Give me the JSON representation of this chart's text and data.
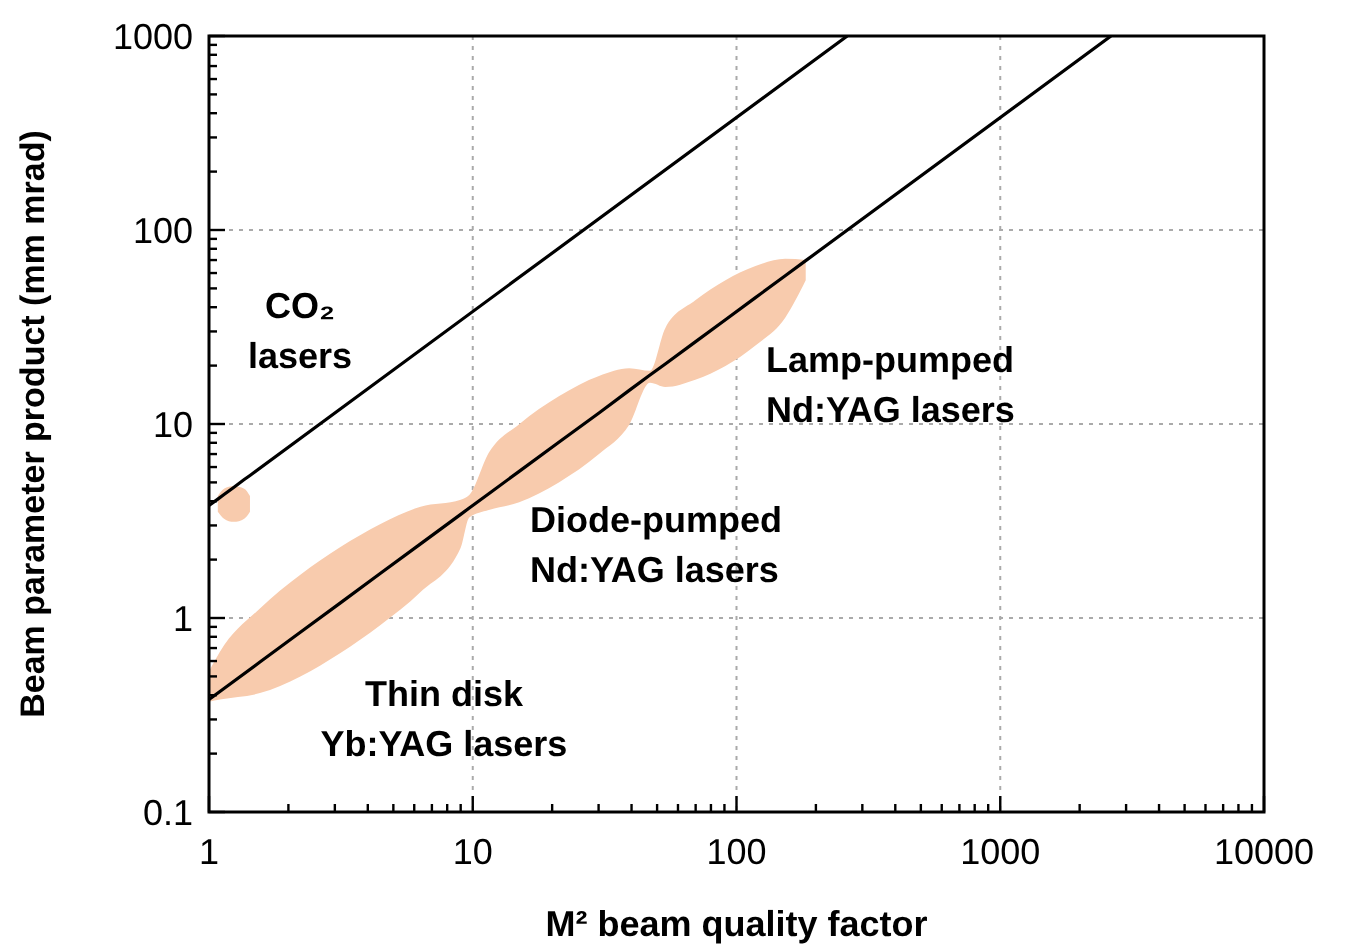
{
  "chart_data": {
    "type": "line",
    "xlabel": "M² beam quality factor",
    "ylabel": "Beam parameter product (mm mrad)",
    "log": "xy",
    "grid": true,
    "line_style": "solid",
    "marker": "none",
    "xlim": [
      1,
      10000
    ],
    "ylim": [
      0.1,
      1000
    ],
    "xticks": [
      1,
      {
        "value": 2,
        "label": null
      },
      {
        "value": 3,
        "label": null
      },
      {
        "value": 4,
        "label": null
      },
      {
        "value": 5,
        "label": null
      },
      {
        "value": 6,
        "label": null
      },
      {
        "value": 7,
        "label": null
      },
      {
        "value": 8,
        "label": null
      },
      {
        "value": 9,
        "label": null
      },
      10,
      {
        "value": 20,
        "label": null
      },
      {
        "value": 30,
        "label": null
      },
      {
        "value": 40,
        "label": null
      },
      {
        "value": 50,
        "label": null
      },
      {
        "value": 60,
        "label": null
      },
      {
        "value": 70,
        "label": null
      },
      {
        "value": 80,
        "label": null
      },
      {
        "value": 90,
        "label": null
      },
      100,
      {
        "value": 200,
        "label": null
      },
      {
        "value": 300,
        "label": null
      },
      {
        "value": 400,
        "label": null
      },
      {
        "value": 500,
        "label": null
      },
      {
        "value": 600,
        "label": null
      },
      {
        "value": 700,
        "label": null
      },
      {
        "value": 800,
        "label": null
      },
      {
        "value": 900,
        "label": null
      },
      1000,
      {
        "value": 2000,
        "label": null
      },
      {
        "value": 3000,
        "label": null
      },
      {
        "value": 4000,
        "label": null
      },
      {
        "value": 5000,
        "label": null
      },
      {
        "value": 6000,
        "label": null
      },
      {
        "value": 7000,
        "label": null
      },
      {
        "value": 8000,
        "label": null
      },
      {
        "value": 9000,
        "label": null
      },
      10000
    ],
    "yticks": [
      {
        "value": 0.1,
        "label": "0.1"
      },
      {
        "value": 0.2,
        "label": null
      },
      {
        "value": 0.3,
        "label": null
      },
      {
        "value": 0.4,
        "label": null
      },
      {
        "value": 0.5,
        "label": null
      },
      {
        "value": 0.6,
        "label": null
      },
      {
        "value": 0.7,
        "label": null
      },
      {
        "value": 0.8,
        "label": null
      },
      {
        "value": 0.9,
        "label": null
      },
      1,
      {
        "value": 2,
        "label": null
      },
      {
        "value": 3,
        "label": null
      },
      {
        "value": 4,
        "label": null
      },
      {
        "value": 5,
        "label": null
      },
      {
        "value": 6,
        "label": null
      },
      {
        "value": 7,
        "label": null
      },
      {
        "value": 8,
        "label": null
      },
      {
        "value": 9,
        "label": null
      },
      10,
      {
        "value": 20,
        "label": null
      },
      {
        "value": 30,
        "label": null
      },
      {
        "value": 40,
        "label": null
      },
      {
        "value": 50,
        "label": null
      },
      {
        "value": 60,
        "label": null
      },
      {
        "value": 70,
        "label": null
      },
      {
        "value": 80,
        "label": null
      },
      {
        "value": 90,
        "label": null
      },
      100,
      {
        "value": 200,
        "label": null
      },
      {
        "value": 300,
        "label": null
      },
      {
        "value": 400,
        "label": null
      },
      {
        "value": 500,
        "label": null
      },
      {
        "value": 600,
        "label": null
      },
      {
        "value": 700,
        "label": null
      },
      {
        "value": 800,
        "label": null
      },
      {
        "value": 900,
        "label": null
      },
      1000
    ],
    "series": [
      {
        "color": "#000000",
        "x": [
          1,
          1.08,
          1.14,
          1.24,
          1.36,
          1.43,
          263
        ],
        "values": [
          3.8,
          4.1,
          4.33,
          4.71,
          5.17,
          5.43,
          1000
        ],
        "lower": [
          null,
          3.53,
          3.25,
          3.13,
          3.25,
          3.53,
          null
        ],
        "upper": [
          null,
          4.25,
          4.64,
          4.79,
          4.64,
          4.25,
          null
        ]
      },
      {
        "color": "#000000",
        "x": [
          1,
          1.1,
          1.56,
          2.22,
          3.15,
          4.47,
          6.34,
          9,
          9.7,
          11.5,
          15,
          21.2,
          30.1,
          39.2,
          47,
          53.7,
          69.8,
          90.8,
          118,
          153,
          183,
          2630
        ],
        "values": [
          0.38,
          0.418,
          0.593,
          0.844,
          1.197,
          1.7,
          2.41,
          3.42,
          3.69,
          4.37,
          5.7,
          8.06,
          11.4,
          14.9,
          17.9,
          20.4,
          26.5,
          34.5,
          44.8,
          58.1,
          69.5,
          1000
        ],
        "lower": [
          0.37,
          0.38,
          0.41,
          0.5,
          0.66,
          0.92,
          1.36,
          2.3,
          3.3,
          3.6,
          3.95,
          5,
          7,
          9.9,
          16.3,
          15.5,
          16.9,
          19.9,
          25.4,
          35.3,
          55,
          null
        ],
        "upper": [
          0.53,
          0.67,
          1.12,
          1.67,
          2.32,
          3.05,
          3.75,
          4.07,
          4.3,
          7.1,
          9.98,
          13.9,
          17.7,
          19.4,
          18.8,
          31.2,
          43.4,
          55.1,
          65.2,
          71,
          70,
          null
        ]
      }
    ],
    "annotations": [
      "CO₂\nlasers",
      "Lamp-pumped\nNd:YAG lasers",
      "Diode-pumped\nNd:YAG lasers",
      "Thin disk\nYb:YAG lasers"
    ]
  }
}
